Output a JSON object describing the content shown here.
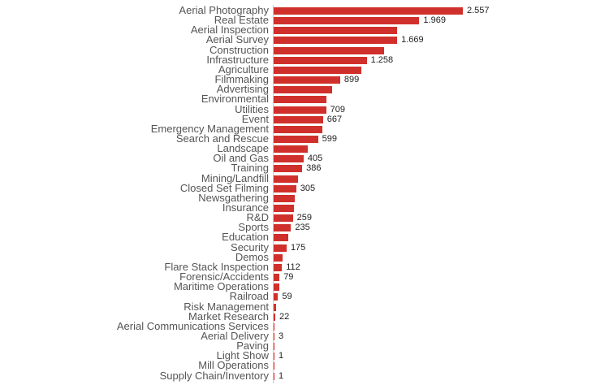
{
  "chart_data": {
    "type": "bar",
    "orientation": "horizontal",
    "title": "",
    "xlabel": "",
    "ylabel": "",
    "bar_color": "#d0302b",
    "grid": false,
    "legend": null,
    "categories": [
      "Aerial Photography",
      "Real Estate",
      "Aerial Inspection",
      "Aerial Survey",
      "Construction",
      "Infrastructure",
      "Agriculture",
      "Filmmaking",
      "Advertising",
      "Environmental",
      "Utilities",
      "Event",
      "Emergency Management",
      "Search and Rescue",
      "Landscape",
      "Oil and Gas",
      "Training",
      "Mining/Landfill",
      "Closed Set Filming",
      "Newsgathering",
      "Insurance",
      "R&D",
      "Sports",
      "Education",
      "Security",
      "Demos",
      "Flare Stack Inspection",
      "Forensic/Accidents",
      "Maritime Operations",
      "Railroad",
      "Risk Management",
      "Market Research",
      "Aerial Communications Services",
      "Aerial Delivery",
      "Paving",
      "Light Show",
      "Mill Operations",
      "Supply Chain/Inventory"
    ],
    "values": [
      2557,
      1969,
      1670,
      1669,
      1490,
      1258,
      1180,
      899,
      790,
      712,
      709,
      667,
      660,
      599,
      460,
      405,
      386,
      330,
      305,
      285,
      272,
      259,
      235,
      200,
      175,
      120,
      112,
      79,
      80,
      59,
      35,
      22,
      15,
      3,
      2,
      1,
      1,
      1
    ],
    "data_labels": [
      "2.557",
      "1.969",
      "",
      "1.669",
      "",
      "1.258",
      "",
      "899",
      "",
      "",
      "709",
      "667",
      "",
      "599",
      "",
      "405",
      "386",
      "",
      "305",
      "",
      "",
      "259",
      "235",
      "",
      "175",
      "",
      "112",
      "79",
      "",
      "59",
      "",
      "22",
      "",
      "3",
      "",
      "1",
      "",
      "1"
    ],
    "xlim": [
      0,
      2600
    ]
  }
}
